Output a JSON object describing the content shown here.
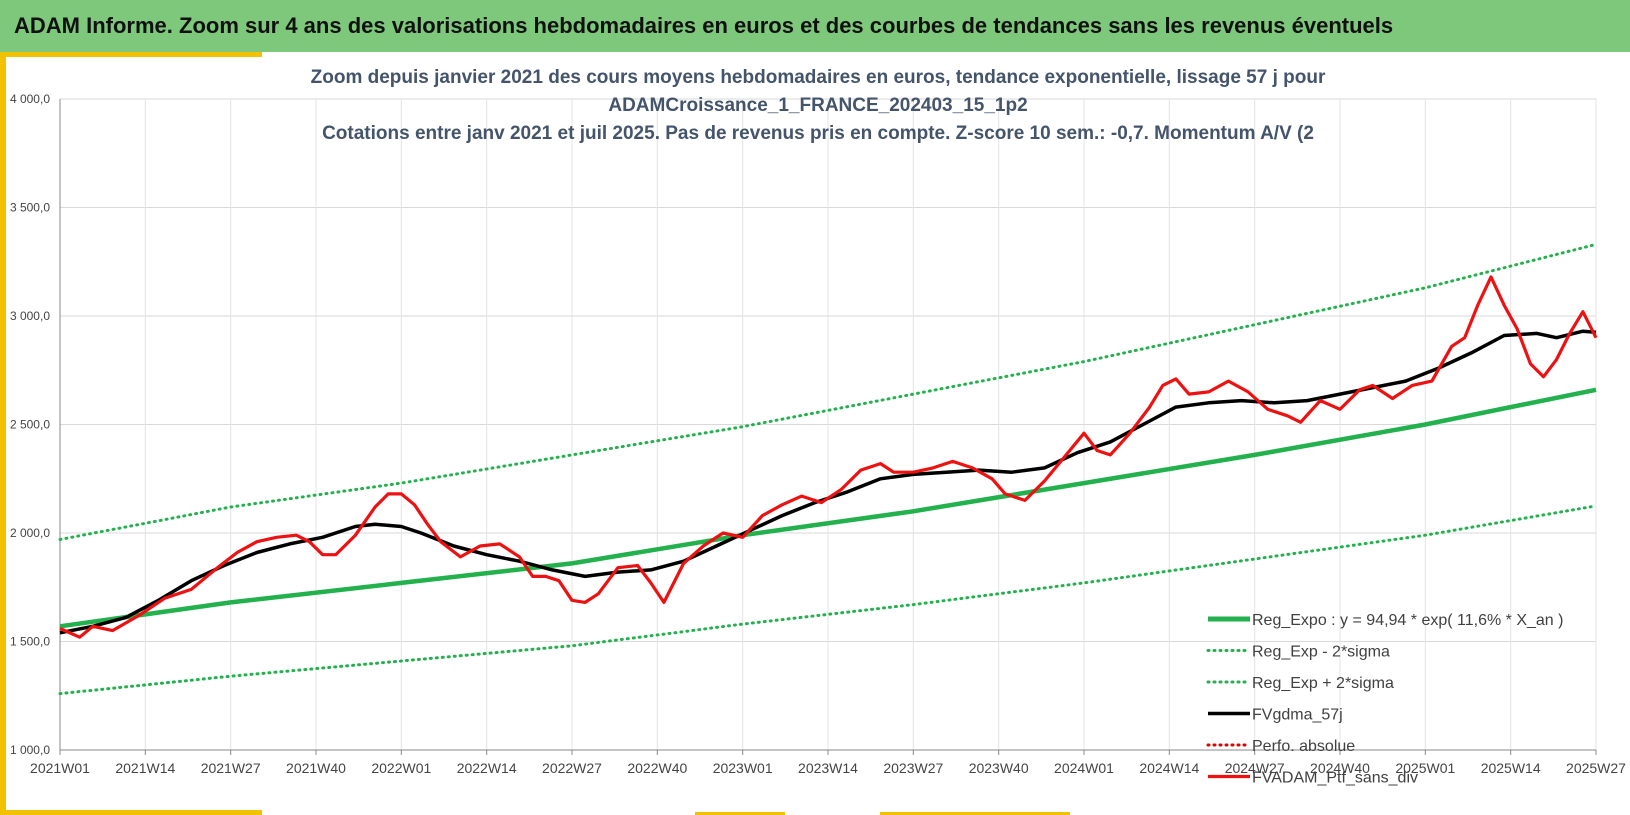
{
  "header": {
    "title": "ADAM Informe. Zoom sur 4 ans des valorisations hebdomadaires en euros et des courbes de tendances sans les revenus éventuels"
  },
  "colors": {
    "banner": "#7dc87b",
    "frame": "#f2c200",
    "title_text": "#44546a",
    "reg_expo": "#22b14c",
    "sigma": "#22b14c",
    "gdma": "#000000",
    "perf": "#e00000",
    "ptf": "#ee1111"
  },
  "chart_data": {
    "type": "line",
    "title_lines": [
      "Zoom depuis janvier 2021 des cours moyens hebdomadaires  en euros, tendance exponentielle, lissage 57 j pour",
      "ADAMCroissance_1_FRANCE_202403_15_1p2",
      "Cotations entre janv 2021 et juil 2025. Pas de revenus pris en compte. Z-score 10 sem.: -0,7. Momentum A/V (2"
    ],
    "ylim": [
      1000,
      4000
    ],
    "yticks": [
      "1 000,0",
      "1 500,0",
      "2 000,0",
      "2 500,0",
      "3 000,0",
      "3 500,0",
      "4 000,0"
    ],
    "xlim": [
      0,
      234
    ],
    "xticks": [
      {
        "x": 0,
        "label": "2021W01"
      },
      {
        "x": 13,
        "label": "2021W14"
      },
      {
        "x": 26,
        "label": "2021W27"
      },
      {
        "x": 39,
        "label": "2021W40"
      },
      {
        "x": 52,
        "label": "2022W01"
      },
      {
        "x": 65,
        "label": "2022W14"
      },
      {
        "x": 78,
        "label": "2022W27"
      },
      {
        "x": 91,
        "label": "2022W40"
      },
      {
        "x": 104,
        "label": "2023W01"
      },
      {
        "x": 117,
        "label": "2023W14"
      },
      {
        "x": 130,
        "label": "2023W27"
      },
      {
        "x": 143,
        "label": "2023W40"
      },
      {
        "x": 156,
        "label": "2024W01"
      },
      {
        "x": 169,
        "label": "2024W14"
      },
      {
        "x": 182,
        "label": "2024W27"
      },
      {
        "x": 195,
        "label": "2024W40"
      },
      {
        "x": 208,
        "label": "2025W01"
      },
      {
        "x": 221,
        "label": "2025W14"
      },
      {
        "x": 234,
        "label": "2025W27"
      }
    ],
    "grid": true,
    "legend_position": "bottom-right",
    "series": [
      {
        "name": "Reg_Expo : y = 94,94 * exp( 11,6% *  X_an )",
        "style": "solid-thick",
        "color": "#22b14c",
        "points": [
          [
            0,
            1570
          ],
          [
            26,
            1680
          ],
          [
            52,
            1770
          ],
          [
            78,
            1860
          ],
          [
            104,
            1990
          ],
          [
            130,
            2100
          ],
          [
            156,
            2230
          ],
          [
            182,
            2360
          ],
          [
            208,
            2500
          ],
          [
            234,
            2660
          ]
        ]
      },
      {
        "name": "Reg_Exp - 2*sigma",
        "style": "dotted",
        "color": "#22b14c",
        "points": [
          [
            0,
            1260
          ],
          [
            26,
            1340
          ],
          [
            52,
            1410
          ],
          [
            78,
            1480
          ],
          [
            104,
            1580
          ],
          [
            130,
            1670
          ],
          [
            156,
            1770
          ],
          [
            182,
            1880
          ],
          [
            208,
            1990
          ],
          [
            234,
            2125
          ]
        ]
      },
      {
        "name": "Reg_Exp + 2*sigma",
        "style": "dotted",
        "color": "#22b14c",
        "points": [
          [
            0,
            1970
          ],
          [
            26,
            2120
          ],
          [
            52,
            2230
          ],
          [
            78,
            2360
          ],
          [
            104,
            2490
          ],
          [
            130,
            2640
          ],
          [
            156,
            2790
          ],
          [
            182,
            2960
          ],
          [
            208,
            3130
          ],
          [
            234,
            3330
          ]
        ]
      },
      {
        "name": "FVgdma_57j",
        "style": "solid",
        "color": "#000000",
        "points": [
          [
            0,
            1540
          ],
          [
            5,
            1570
          ],
          [
            10,
            1610
          ],
          [
            15,
            1690
          ],
          [
            20,
            1780
          ],
          [
            25,
            1850
          ],
          [
            30,
            1910
          ],
          [
            35,
            1950
          ],
          [
            40,
            1980
          ],
          [
            45,
            2030
          ],
          [
            48,
            2040
          ],
          [
            52,
            2030
          ],
          [
            55,
            2000
          ],
          [
            60,
            1940
          ],
          [
            65,
            1900
          ],
          [
            70,
            1870
          ],
          [
            75,
            1830
          ],
          [
            80,
            1800
          ],
          [
            85,
            1820
          ],
          [
            90,
            1830
          ],
          [
            95,
            1870
          ],
          [
            100,
            1940
          ],
          [
            105,
            2010
          ],
          [
            110,
            2080
          ],
          [
            115,
            2140
          ],
          [
            120,
            2190
          ],
          [
            125,
            2250
          ],
          [
            130,
            2270
          ],
          [
            135,
            2280
          ],
          [
            140,
            2290
          ],
          [
            145,
            2280
          ],
          [
            150,
            2300
          ],
          [
            155,
            2370
          ],
          [
            160,
            2420
          ],
          [
            165,
            2500
          ],
          [
            170,
            2580
          ],
          [
            175,
            2600
          ],
          [
            180,
            2610
          ],
          [
            185,
            2600
          ],
          [
            190,
            2610
          ],
          [
            195,
            2640
          ],
          [
            200,
            2670
          ],
          [
            205,
            2700
          ],
          [
            210,
            2760
          ],
          [
            215,
            2830
          ],
          [
            220,
            2910
          ],
          [
            225,
            2920
          ],
          [
            228,
            2900
          ],
          [
            232,
            2930
          ],
          [
            234,
            2925
          ]
        ]
      },
      {
        "name": "Perfo. absolue",
        "style": "dotted",
        "color": "#e00000",
        "points": []
      },
      {
        "name": "FVADAM_Ptf_sans_div",
        "style": "solid",
        "color": "#ee1111",
        "points": [
          [
            0,
            1560
          ],
          [
            3,
            1520
          ],
          [
            5,
            1570
          ],
          [
            8,
            1550
          ],
          [
            12,
            1620
          ],
          [
            16,
            1700
          ],
          [
            20,
            1740
          ],
          [
            24,
            1840
          ],
          [
            27,
            1910
          ],
          [
            30,
            1960
          ],
          [
            33,
            1980
          ],
          [
            36,
            1990
          ],
          [
            38,
            1960
          ],
          [
            40,
            1900
          ],
          [
            42,
            1900
          ],
          [
            45,
            1990
          ],
          [
            48,
            2120
          ],
          [
            50,
            2180
          ],
          [
            52,
            2180
          ],
          [
            54,
            2130
          ],
          [
            56,
            2040
          ],
          [
            58,
            1960
          ],
          [
            61,
            1890
          ],
          [
            64,
            1940
          ],
          [
            67,
            1950
          ],
          [
            70,
            1890
          ],
          [
            72,
            1800
          ],
          [
            74,
            1800
          ],
          [
            76,
            1780
          ],
          [
            78,
            1690
          ],
          [
            80,
            1680
          ],
          [
            82,
            1720
          ],
          [
            85,
            1840
          ],
          [
            88,
            1850
          ],
          [
            90,
            1770
          ],
          [
            92,
            1680
          ],
          [
            95,
            1860
          ],
          [
            98,
            1940
          ],
          [
            101,
            2000
          ],
          [
            104,
            1980
          ],
          [
            107,
            2080
          ],
          [
            110,
            2130
          ],
          [
            113,
            2170
          ],
          [
            116,
            2140
          ],
          [
            119,
            2200
          ],
          [
            122,
            2290
          ],
          [
            125,
            2320
          ],
          [
            127,
            2280
          ],
          [
            130,
            2280
          ],
          [
            133,
            2300
          ],
          [
            136,
            2330
          ],
          [
            139,
            2300
          ],
          [
            142,
            2250
          ],
          [
            144,
            2180
          ],
          [
            147,
            2150
          ],
          [
            150,
            2240
          ],
          [
            153,
            2350
          ],
          [
            156,
            2460
          ],
          [
            158,
            2380
          ],
          [
            160,
            2360
          ],
          [
            163,
            2460
          ],
          [
            166,
            2580
          ],
          [
            168,
            2680
          ],
          [
            170,
            2710
          ],
          [
            172,
            2640
          ],
          [
            175,
            2650
          ],
          [
            178,
            2700
          ],
          [
            181,
            2650
          ],
          [
            184,
            2570
          ],
          [
            187,
            2540
          ],
          [
            189,
            2510
          ],
          [
            192,
            2610
          ],
          [
            195,
            2570
          ],
          [
            198,
            2660
          ],
          [
            200,
            2680
          ],
          [
            203,
            2620
          ],
          [
            206,
            2680
          ],
          [
            209,
            2700
          ],
          [
            212,
            2860
          ],
          [
            214,
            2900
          ],
          [
            216,
            3050
          ],
          [
            218,
            3180
          ],
          [
            220,
            3050
          ],
          [
            222,
            2940
          ],
          [
            224,
            2780
          ],
          [
            226,
            2720
          ],
          [
            228,
            2800
          ],
          [
            230,
            2920
          ],
          [
            232,
            3020
          ],
          [
            234,
            2900
          ]
        ]
      }
    ]
  }
}
